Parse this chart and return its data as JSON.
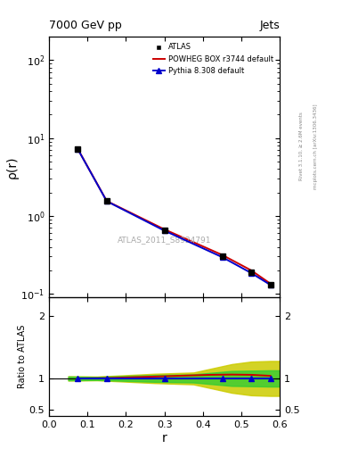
{
  "title_left": "7000 GeV pp",
  "title_right": "Jets",
  "ylabel_main": "ρ(r)",
  "ylabel_ratio": "Ratio to ATLAS",
  "xlabel": "r",
  "watermark": "ATLAS_2011_S8924791",
  "rivet_label": "Rivet 3.1.10, ≥ 2.6M events",
  "mcplots_label": "mcplots.cern.ch [arXiv:1306.3436]",
  "atlas_x": [
    0.075,
    0.15,
    0.3,
    0.45,
    0.525,
    0.575
  ],
  "atlas_y": [
    7.2,
    1.55,
    0.65,
    0.3,
    0.19,
    0.13
  ],
  "atlas_yerr_lo": [
    0.3,
    0.06,
    0.025,
    0.012,
    0.008,
    0.006
  ],
  "atlas_yerr_hi": [
    0.3,
    0.06,
    0.025,
    0.012,
    0.008,
    0.006
  ],
  "powheg_x": [
    0.075,
    0.15,
    0.3,
    0.45,
    0.525,
    0.575
  ],
  "powheg_y": [
    7.2,
    1.55,
    0.67,
    0.315,
    0.2,
    0.135
  ],
  "pythia_x": [
    0.075,
    0.15,
    0.3,
    0.45,
    0.525,
    0.575
  ],
  "pythia_y": [
    7.15,
    1.54,
    0.645,
    0.295,
    0.185,
    0.13
  ],
  "ratio_powheg_x": [
    0.075,
    0.15,
    0.25,
    0.3,
    0.35,
    0.42,
    0.475,
    0.525,
    0.575
  ],
  "ratio_powheg_y": [
    1.0,
    1.005,
    1.025,
    1.035,
    1.045,
    1.058,
    1.062,
    1.058,
    1.042
  ],
  "ratio_pythia_x": [
    0.075,
    0.15,
    0.3,
    0.45,
    0.525,
    0.575
  ],
  "ratio_pythia_y": [
    1.0,
    1.0,
    1.0,
    1.0,
    1.0,
    1.0
  ],
  "green_band_x": [
    0.05,
    0.125,
    0.175,
    0.275,
    0.375,
    0.475,
    0.575,
    0.6
  ],
  "green_band_lo": [
    0.97,
    0.975,
    0.965,
    0.945,
    0.935,
    0.88,
    0.87,
    0.87
  ],
  "green_band_hi": [
    1.03,
    1.025,
    1.035,
    1.055,
    1.065,
    1.12,
    1.13,
    1.13
  ],
  "yellow_band_x": [
    0.05,
    0.125,
    0.175,
    0.275,
    0.375,
    0.475,
    0.525,
    0.575,
    0.6
  ],
  "yellow_band_lo": [
    0.965,
    0.97,
    0.955,
    0.925,
    0.905,
    0.77,
    0.73,
    0.72,
    0.72
  ],
  "yellow_band_hi": [
    1.035,
    1.03,
    1.045,
    1.075,
    1.095,
    1.23,
    1.27,
    1.28,
    1.28
  ],
  "atlas_color": "black",
  "powheg_color": "#cc0000",
  "pythia_color": "#0000cc",
  "green_color": "#33cc33",
  "yellow_color": "#cccc00",
  "xlim": [
    0.0,
    0.6
  ],
  "ylim_main_lo": 0.09,
  "ylim_main_hi": 200,
  "ylim_ratio": [
    0.4,
    2.3
  ]
}
